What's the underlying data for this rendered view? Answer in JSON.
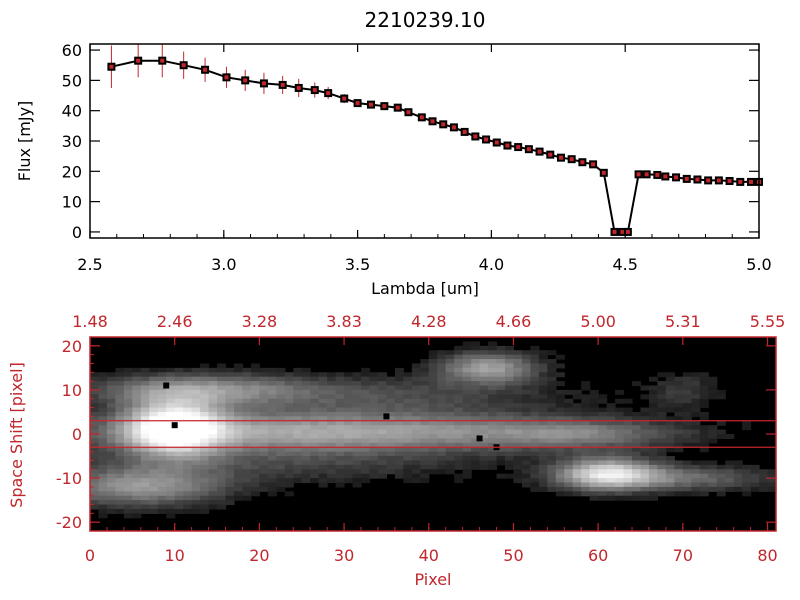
{
  "chart_data": [
    {
      "type": "line",
      "title": "2210239.10",
      "xlabel": "Lambda [um]",
      "ylabel": "Flux [mJy]",
      "xlim": [
        2.5,
        5.0
      ],
      "ylim": [
        -2,
        62
      ],
      "x_ticks": [
        "2.5",
        "3.0",
        "3.5",
        "4.0",
        "4.5",
        "5.0"
      ],
      "y_ticks": [
        "0",
        "10",
        "20",
        "30",
        "40",
        "50",
        "60"
      ],
      "line_color": "#000000",
      "marker_color": "#c0272d",
      "errorbar_color": "#c0272d",
      "series": [
        {
          "x": [
            2.58,
            2.68,
            2.77,
            2.85,
            2.93,
            3.01,
            3.08,
            3.15,
            3.22,
            3.28,
            3.34,
            3.39,
            3.45,
            3.5,
            3.55,
            3.6,
            3.65,
            3.69,
            3.74,
            3.78,
            3.82,
            3.86,
            3.9,
            3.94,
            3.98,
            4.02,
            4.06,
            4.1,
            4.14,
            4.18,
            4.22,
            4.26,
            4.3,
            4.34,
            4.38,
            4.42,
            4.46,
            4.49,
            4.51,
            4.55,
            4.58,
            4.62,
            4.65,
            4.69,
            4.73,
            4.77,
            4.81,
            4.85,
            4.89,
            4.93,
            4.97,
            5.0
          ],
          "y": [
            54.5,
            56.5,
            56.5,
            55,
            53.5,
            51,
            50,
            49,
            48.5,
            47.5,
            46.8,
            45.8,
            44,
            42.5,
            42,
            41.5,
            41,
            39.5,
            37.8,
            36.5,
            35.5,
            34.5,
            33,
            31.5,
            30.5,
            29.5,
            28.5,
            28,
            27.3,
            26.5,
            25.5,
            24.5,
            24,
            23,
            22.3,
            19.5,
            0,
            0,
            0,
            19,
            19,
            18.8,
            18.3,
            18,
            17.5,
            17.3,
            17,
            17,
            16.8,
            16.5,
            16.5,
            16.5
          ],
          "yerr": [
            7,
            5.5,
            5.5,
            4.5,
            4,
            3.5,
            3.5,
            3.5,
            3,
            3,
            2.5,
            2,
            1.5,
            1.2,
            1,
            1,
            1,
            1,
            1,
            1,
            1,
            1,
            1,
            1,
            1,
            1,
            1,
            1,
            1,
            1,
            1,
            1,
            1,
            1,
            1,
            1,
            0.5,
            0.5,
            0.5,
            0.5,
            1,
            1,
            1,
            1,
            1,
            1,
            1,
            1,
            1,
            1,
            1,
            1
          ]
        }
      ]
    },
    {
      "type": "heatmap",
      "xlabel": "Pixel",
      "ylabel": "Space Shift [pixel]",
      "xlim": [
        0,
        81
      ],
      "ylim": [
        -22,
        22
      ],
      "x_ticks": [
        "0",
        "10",
        "20",
        "30",
        "40",
        "50",
        "60",
        "70",
        "80"
      ],
      "top_ticks": [
        "1.48",
        "2.46",
        "3.28",
        "3.83",
        "4.28",
        "4.66",
        "5.00",
        "5.31",
        "5.55"
      ],
      "y_ticks": [
        "-20",
        "-10",
        "0",
        "10",
        "20"
      ],
      "extraction_lines": [
        3,
        -3
      ],
      "frame_color": "#c0272d",
      "blobs": [
        {
          "x": 10,
          "y": 1.5,
          "sx": 4,
          "sy": 4.5,
          "a": 1.0
        },
        {
          "x": 28,
          "y": 0.5,
          "sx": 20,
          "sy": 3.3,
          "a": 0.6
        },
        {
          "x": 58,
          "y": 0,
          "sx": 8,
          "sy": 2.2,
          "a": 0.28
        },
        {
          "x": 13,
          "y": 10,
          "sx": 9,
          "sy": 2.5,
          "a": 0.45
        },
        {
          "x": 6,
          "y": -12,
          "sx": 7,
          "sy": 3,
          "a": 0.5
        },
        {
          "x": 47,
          "y": 15,
          "sx": 4,
          "sy": 2.5,
          "a": 0.55
        },
        {
          "x": 35,
          "y": 9,
          "sx": 14,
          "sy": 3,
          "a": 0.2
        },
        {
          "x": 61,
          "y": -9,
          "sx": 4,
          "sy": 2.5,
          "a": 0.75
        },
        {
          "x": 69,
          "y": -10,
          "sx": 8,
          "sy": 2,
          "a": 0.35
        },
        {
          "x": 22,
          "y": -7,
          "sx": 16,
          "sy": 3,
          "a": 0.16
        },
        {
          "x": 70,
          "y": 10,
          "sx": 3,
          "sy": 3,
          "a": 0.15
        }
      ],
      "dark_spots": [
        [
          9,
          11
        ],
        [
          10,
          2
        ],
        [
          35,
          4
        ],
        [
          46,
          -1
        ],
        [
          48,
          -3
        ]
      ]
    }
  ]
}
